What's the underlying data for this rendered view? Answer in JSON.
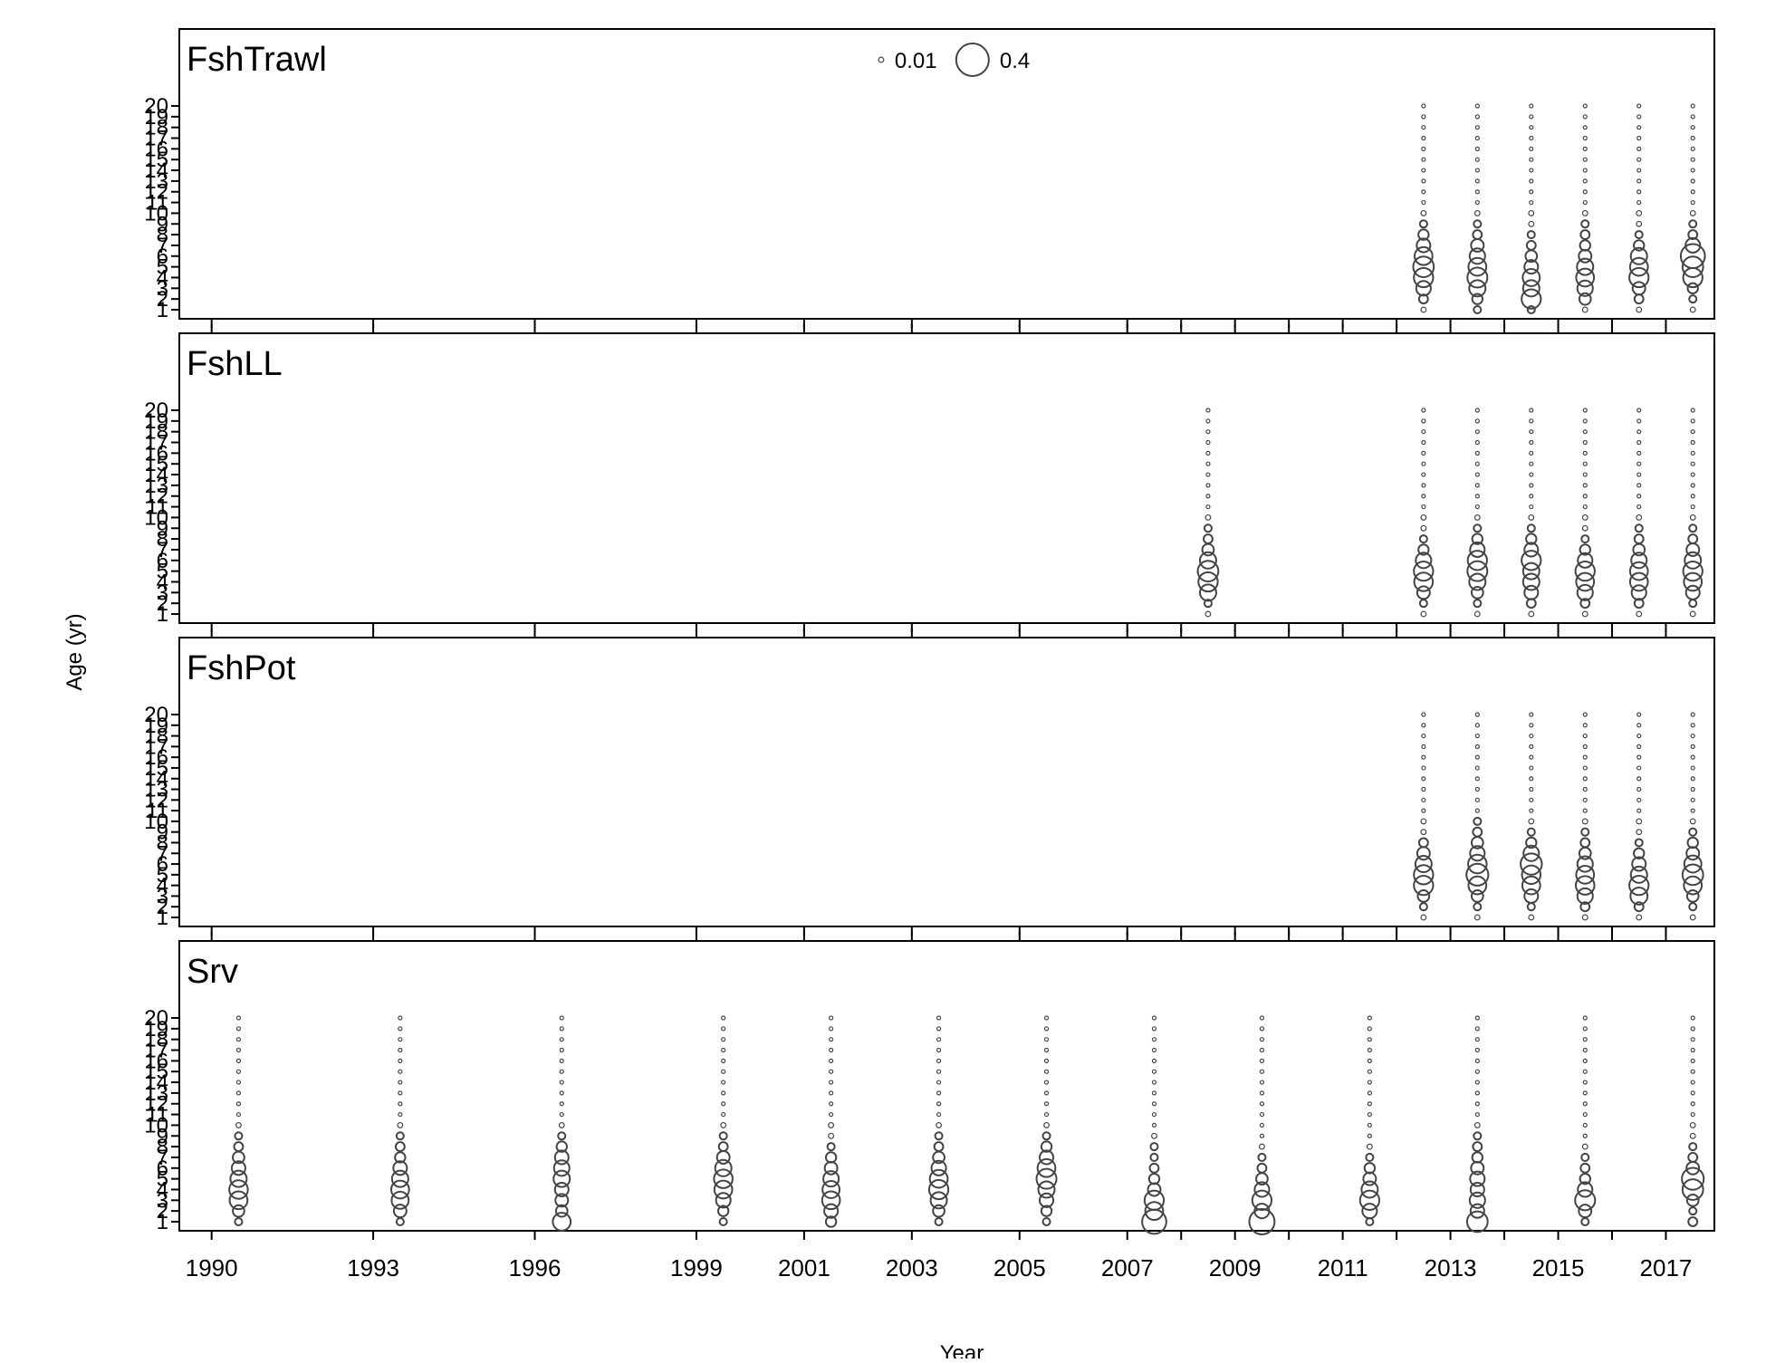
{
  "chart_data": {
    "type": "bubble",
    "xlabel": "Year",
    "ylabel": "Age (yr)",
    "x_ticks": [
      1990,
      1993,
      1996,
      1999,
      2001,
      2003,
      2005,
      2007,
      2009,
      2011,
      2013,
      2015,
      2017
    ],
    "x_extra_ticks": [
      2008,
      2010,
      2012,
      2014,
      2016
    ],
    "xlim": [
      1989.4,
      2017.9
    ],
    "y_ticks": [
      1,
      2,
      3,
      4,
      5,
      6,
      7,
      8,
      9,
      10,
      11,
      12,
      13,
      14,
      15,
      16,
      17,
      18,
      19,
      20
    ],
    "ylim": [
      1,
      20
    ],
    "legend": {
      "items": [
        {
          "label": "0.01",
          "value": 0.01
        },
        {
          "label": "0.4",
          "value": 0.4
        }
      ]
    },
    "bubble_color": "#444444",
    "panels": [
      {
        "title": "FshTrawl",
        "years": [
          2012.5,
          2013.5,
          2014.5,
          2015.5,
          2016.5,
          2017.5
        ],
        "props": [
          [
            0.01,
            0.03,
            0.08,
            0.14,
            0.16,
            0.12,
            0.07,
            0.04,
            0.02,
            0.01,
            0.005,
            0.005,
            0.005,
            0.005,
            0.005,
            0.005,
            0.005,
            0.005,
            0.005,
            0.005
          ],
          [
            0.02,
            0.04,
            0.1,
            0.15,
            0.12,
            0.09,
            0.06,
            0.03,
            0.02,
            0.01,
            0.005,
            0.005,
            0.005,
            0.005,
            0.005,
            0.005,
            0.005,
            0.005,
            0.005,
            0.005
          ],
          [
            0.02,
            0.14,
            0.1,
            0.11,
            0.07,
            0.05,
            0.03,
            0.02,
            0.01,
            0.01,
            0.005,
            0.005,
            0.005,
            0.005,
            0.005,
            0.005,
            0.005,
            0.005,
            0.005,
            0.005
          ],
          [
            0.01,
            0.05,
            0.09,
            0.12,
            0.1,
            0.06,
            0.04,
            0.03,
            0.02,
            0.01,
            0.005,
            0.005,
            0.005,
            0.005,
            0.005,
            0.005,
            0.005,
            0.005,
            0.005,
            0.005
          ],
          [
            0.01,
            0.03,
            0.06,
            0.14,
            0.12,
            0.1,
            0.04,
            0.02,
            0.01,
            0.01,
            0.005,
            0.005,
            0.005,
            0.005,
            0.005,
            0.005,
            0.005,
            0.005,
            0.005,
            0.005
          ],
          [
            0.01,
            0.02,
            0.04,
            0.14,
            0.16,
            0.22,
            0.08,
            0.03,
            0.02,
            0.01,
            0.005,
            0.005,
            0.005,
            0.005,
            0.005,
            0.005,
            0.005,
            0.005,
            0.005,
            0.005
          ]
        ]
      },
      {
        "title": "FshLL",
        "years": [
          2008.5,
          2012.5,
          2013.5,
          2014.5,
          2015.5,
          2016.5,
          2017.5
        ],
        "props": [
          [
            0.01,
            0.02,
            0.1,
            0.14,
            0.16,
            0.1,
            0.05,
            0.03,
            0.02,
            0.01,
            0.005,
            0.005,
            0.005,
            0.005,
            0.005,
            0.005,
            0.005,
            0.005,
            0.005,
            0.005
          ],
          [
            0.01,
            0.02,
            0.06,
            0.13,
            0.14,
            0.09,
            0.04,
            0.02,
            0.01,
            0.01,
            0.005,
            0.005,
            0.005,
            0.005,
            0.005,
            0.005,
            0.005,
            0.005,
            0.005,
            0.005
          ],
          [
            0.01,
            0.02,
            0.05,
            0.1,
            0.15,
            0.14,
            0.08,
            0.04,
            0.02,
            0.01,
            0.005,
            0.005,
            0.005,
            0.005,
            0.005,
            0.005,
            0.005,
            0.005,
            0.005,
            0.005
          ],
          [
            0.01,
            0.03,
            0.07,
            0.1,
            0.1,
            0.14,
            0.07,
            0.04,
            0.02,
            0.01,
            0.005,
            0.005,
            0.005,
            0.005,
            0.005,
            0.005,
            0.005,
            0.005,
            0.005,
            0.005
          ],
          [
            0.01,
            0.03,
            0.09,
            0.12,
            0.14,
            0.08,
            0.04,
            0.02,
            0.01,
            0.01,
            0.005,
            0.005,
            0.005,
            0.005,
            0.005,
            0.005,
            0.005,
            0.005,
            0.005,
            0.005
          ],
          [
            0.01,
            0.03,
            0.08,
            0.12,
            0.12,
            0.09,
            0.05,
            0.03,
            0.02,
            0.01,
            0.005,
            0.005,
            0.005,
            0.005,
            0.005,
            0.005,
            0.005,
            0.005,
            0.005,
            0.005
          ],
          [
            0.01,
            0.02,
            0.07,
            0.12,
            0.14,
            0.1,
            0.06,
            0.03,
            0.02,
            0.01,
            0.005,
            0.005,
            0.005,
            0.005,
            0.005,
            0.005,
            0.005,
            0.005,
            0.005,
            0.005
          ]
        ]
      },
      {
        "title": "FshPot",
        "years": [
          2012.5,
          2013.5,
          2014.5,
          2015.5,
          2016.5,
          2017.5
        ],
        "props": [
          [
            0.01,
            0.02,
            0.05,
            0.14,
            0.14,
            0.1,
            0.06,
            0.03,
            0.01,
            0.01,
            0.005,
            0.005,
            0.005,
            0.005,
            0.005,
            0.005,
            0.005,
            0.005,
            0.005,
            0.005
          ],
          [
            0.01,
            0.02,
            0.05,
            0.12,
            0.18,
            0.13,
            0.08,
            0.05,
            0.03,
            0.02,
            0.005,
            0.005,
            0.005,
            0.005,
            0.005,
            0.005,
            0.005,
            0.005,
            0.005,
            0.005
          ],
          [
            0.01,
            0.02,
            0.07,
            0.12,
            0.13,
            0.17,
            0.09,
            0.04,
            0.02,
            0.01,
            0.005,
            0.005,
            0.005,
            0.005,
            0.005,
            0.005,
            0.005,
            0.005,
            0.005,
            0.005
          ],
          [
            0.01,
            0.03,
            0.09,
            0.13,
            0.12,
            0.09,
            0.05,
            0.03,
            0.02,
            0.01,
            0.005,
            0.005,
            0.005,
            0.005,
            0.005,
            0.005,
            0.005,
            0.005,
            0.005,
            0.005
          ],
          [
            0.01,
            0.03,
            0.11,
            0.14,
            0.1,
            0.07,
            0.04,
            0.02,
            0.01,
            0.01,
            0.005,
            0.005,
            0.005,
            0.005,
            0.005,
            0.005,
            0.005,
            0.005,
            0.005,
            0.005
          ],
          [
            0.01,
            0.02,
            0.05,
            0.12,
            0.16,
            0.11,
            0.06,
            0.04,
            0.02,
            0.01,
            0.005,
            0.005,
            0.005,
            0.005,
            0.005,
            0.005,
            0.005,
            0.005,
            0.005,
            0.005
          ]
        ]
      },
      {
        "title": "Srv",
        "years": [
          1990.5,
          1993.5,
          1996.5,
          1999.5,
          2001.5,
          2003.5,
          2005.5,
          2007.5,
          2009.5,
          2011.5,
          2013.5,
          2015.5,
          2017.5
        ],
        "props": [
          [
            0.02,
            0.05,
            0.12,
            0.13,
            0.1,
            0.07,
            0.05,
            0.03,
            0.02,
            0.01,
            0.005,
            0.005,
            0.005,
            0.005,
            0.005,
            0.005,
            0.005,
            0.005,
            0.005,
            0.005
          ],
          [
            0.02,
            0.06,
            0.11,
            0.12,
            0.1,
            0.07,
            0.04,
            0.03,
            0.02,
            0.01,
            0.005,
            0.005,
            0.005,
            0.005,
            0.005,
            0.005,
            0.005,
            0.005,
            0.005,
            0.005
          ],
          [
            0.12,
            0.05,
            0.06,
            0.07,
            0.1,
            0.09,
            0.07,
            0.04,
            0.02,
            0.01,
            0.005,
            0.005,
            0.005,
            0.005,
            0.005,
            0.005,
            0.005,
            0.005,
            0.005,
            0.005
          ],
          [
            0.02,
            0.04,
            0.08,
            0.12,
            0.13,
            0.1,
            0.06,
            0.03,
            0.02,
            0.01,
            0.005,
            0.005,
            0.005,
            0.005,
            0.005,
            0.005,
            0.005,
            0.005,
            0.005,
            0.005
          ],
          [
            0.04,
            0.07,
            0.12,
            0.11,
            0.09,
            0.06,
            0.04,
            0.02,
            0.01,
            0.01,
            0.005,
            0.005,
            0.005,
            0.005,
            0.005,
            0.005,
            0.005,
            0.005,
            0.005,
            0.005
          ],
          [
            0.02,
            0.05,
            0.1,
            0.14,
            0.12,
            0.08,
            0.05,
            0.03,
            0.02,
            0.01,
            0.005,
            0.005,
            0.005,
            0.005,
            0.005,
            0.005,
            0.005,
            0.005,
            0.005,
            0.005
          ],
          [
            0.02,
            0.04,
            0.07,
            0.1,
            0.15,
            0.12,
            0.07,
            0.04,
            0.02,
            0.01,
            0.005,
            0.005,
            0.005,
            0.005,
            0.005,
            0.005,
            0.005,
            0.005,
            0.005,
            0.005
          ],
          [
            0.22,
            0.12,
            0.14,
            0.06,
            0.04,
            0.03,
            0.02,
            0.02,
            0.01,
            0.005,
            0.005,
            0.005,
            0.005,
            0.005,
            0.005,
            0.005,
            0.005,
            0.005,
            0.005,
            0.005
          ],
          [
            0.24,
            0.08,
            0.14,
            0.08,
            0.05,
            0.03,
            0.02,
            0.01,
            0.005,
            0.005,
            0.005,
            0.005,
            0.005,
            0.005,
            0.005,
            0.005,
            0.005,
            0.005,
            0.005,
            0.005
          ],
          [
            0.02,
            0.08,
            0.14,
            0.1,
            0.06,
            0.04,
            0.02,
            0.01,
            0.005,
            0.005,
            0.005,
            0.005,
            0.005,
            0.005,
            0.005,
            0.005,
            0.005,
            0.005,
            0.005,
            0.005
          ],
          [
            0.16,
            0.07,
            0.09,
            0.07,
            0.08,
            0.06,
            0.04,
            0.03,
            0.02,
            0.01,
            0.005,
            0.005,
            0.005,
            0.005,
            0.005,
            0.005,
            0.005,
            0.005,
            0.005,
            0.005
          ],
          [
            0.02,
            0.06,
            0.15,
            0.08,
            0.04,
            0.03,
            0.02,
            0.01,
            0.005,
            0.005,
            0.005,
            0.005,
            0.005,
            0.005,
            0.005,
            0.005,
            0.005,
            0.005,
            0.005,
            0.005
          ],
          [
            0.03,
            0.02,
            0.05,
            0.16,
            0.18,
            0.06,
            0.03,
            0.02,
            0.01,
            0.01,
            0.005,
            0.005,
            0.005,
            0.005,
            0.005,
            0.005,
            0.005,
            0.005,
            0.005,
            0.005
          ]
        ]
      }
    ]
  }
}
